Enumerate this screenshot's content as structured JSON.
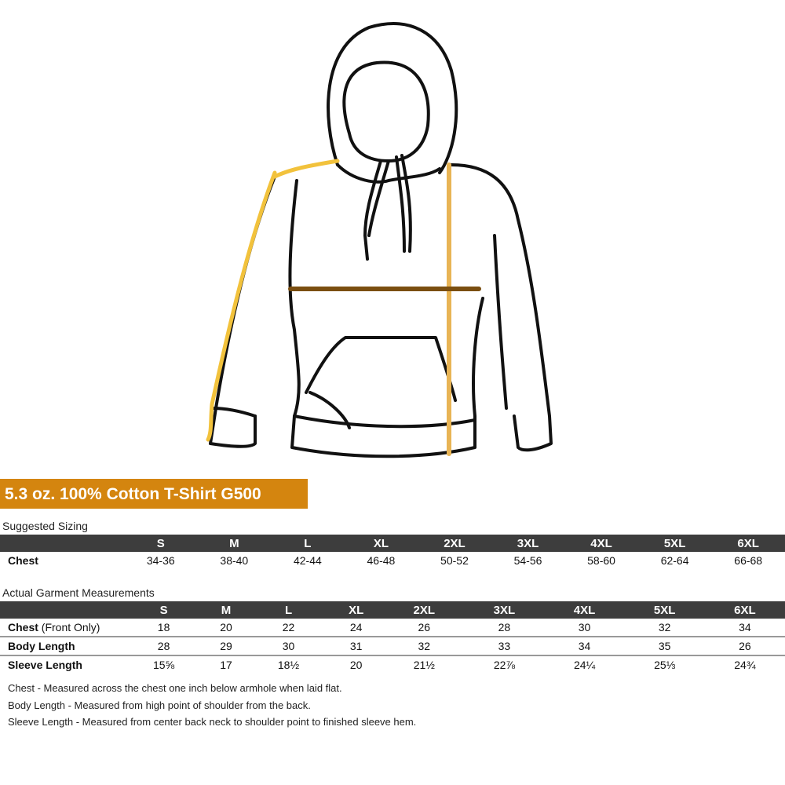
{
  "title": "5.3 oz. 100% Cotton T-Shirt G500",
  "colors": {
    "title_bg": "#d4850f",
    "header_bg": "#3d3d3d",
    "sleeve_line": "#f2c23c",
    "length_line": "#e8b455",
    "chest_line": "#7a4e10"
  },
  "sizes": [
    "S",
    "M",
    "L",
    "XL",
    "2XL",
    "3XL",
    "4XL",
    "5XL",
    "6XL"
  ],
  "suggested": {
    "caption": "Suggested Sizing",
    "rows": [
      {
        "label": "Chest",
        "values": [
          "34-36",
          "38-40",
          "42-44",
          "46-48",
          "50-52",
          "54-56",
          "58-60",
          "62-64",
          "66-68"
        ]
      }
    ]
  },
  "actual": {
    "caption": "Actual Garment Measurements",
    "rows": [
      {
        "label": "Chest",
        "sub": " (Front Only)",
        "values": [
          "18",
          "20",
          "22",
          "24",
          "26",
          "28",
          "30",
          "32",
          "34"
        ]
      },
      {
        "label": "Body Length",
        "values": [
          "28",
          "29",
          "30",
          "31",
          "32",
          "33",
          "34",
          "35",
          "26"
        ]
      },
      {
        "label": "Sleeve Length",
        "values": [
          "15⅝",
          "17",
          "18½",
          "20",
          "21½",
          "22⅞",
          "24¼",
          "25⅓",
          "24¾"
        ]
      }
    ]
  },
  "notes": [
    "Chest - Measured across the chest one inch below armhole when laid flat.",
    "Body Length - Measured from high point of shoulder from the back.",
    "Sleeve Length - Measured from center back neck to shoulder point to finished sleeve hem."
  ]
}
